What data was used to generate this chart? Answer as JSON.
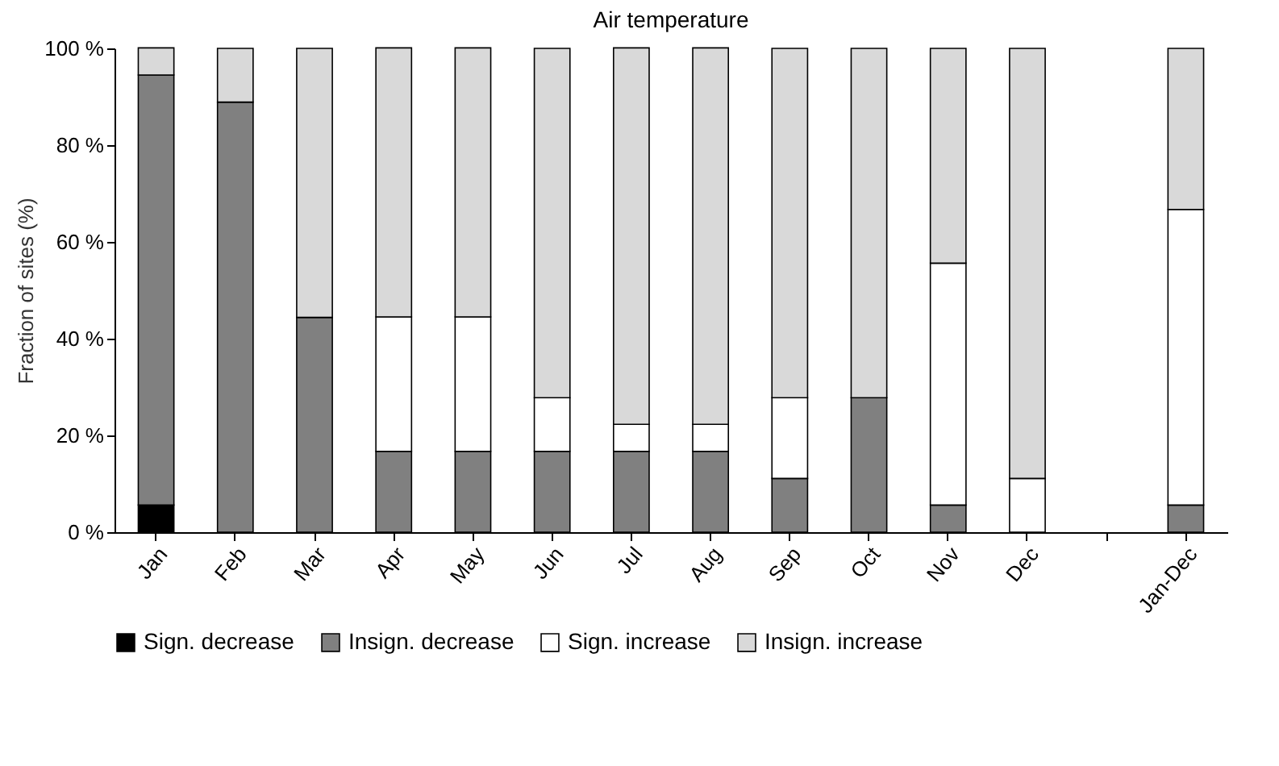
{
  "chart_data": {
    "type": "bar",
    "stacked": true,
    "title": "Air temperature",
    "ylabel": "Fraction of sites (%)",
    "categories": [
      "Jan",
      "Feb",
      "Mar",
      "Apr",
      "May",
      "Jun",
      "Jul",
      "Aug",
      "Sep",
      "Oct",
      "Nov",
      "Dec",
      null,
      "Jan-Dec"
    ],
    "series": [
      {
        "name": "Sign. decrease",
        "color": "#000000",
        "values": [
          5.6,
          null,
          null,
          null,
          null,
          null,
          null,
          null,
          null,
          null,
          null,
          null,
          null,
          null
        ]
      },
      {
        "name": "Insign. decrease",
        "color": "#808080",
        "values": [
          88.9,
          88.9,
          44.4,
          16.7,
          16.7,
          16.7,
          16.7,
          16.7,
          11.1,
          27.8,
          5.6,
          null,
          null,
          5.6
        ]
      },
      {
        "name": "Sign. increase",
        "color": "#ffffff",
        "values": [
          null,
          null,
          null,
          27.8,
          27.8,
          11.1,
          5.6,
          5.6,
          16.7,
          null,
          50,
          11.1,
          null,
          61.1
        ]
      },
      {
        "name": "Insign. increase",
        "color": "#d9d9d9",
        "values": [
          5.6,
          11.1,
          55.6,
          55.6,
          55.6,
          72.2,
          77.8,
          77.8,
          72.2,
          72.2,
          44.4,
          88.9,
          null,
          33.3
        ]
      }
    ],
    "ylim": [
      0,
      100
    ],
    "yticks": [
      {
        "value": 0,
        "label": "0 %"
      },
      {
        "value": 20,
        "label": "20 %"
      },
      {
        "value": 40,
        "label": "40 %"
      },
      {
        "value": 60,
        "label": "60 %"
      },
      {
        "value": 80,
        "label": "80 %"
      },
      {
        "value": 100,
        "label": "100 %"
      }
    ],
    "grid": false,
    "legend": "bottom"
  }
}
